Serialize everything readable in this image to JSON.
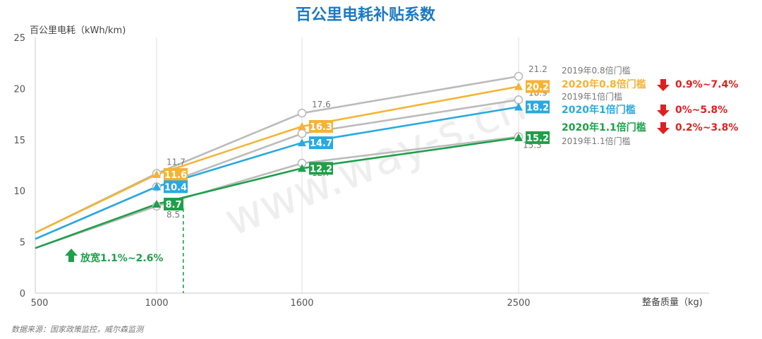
{
  "colors": {
    "gray": "#bbbbbb",
    "orange": "#f5b335",
    "blue": "#2aa9df",
    "green": "#1ea04a",
    "red": "#e02020",
    "title": "#1d79c1",
    "axis_text": "#555555",
    "grid": "#dddddd"
  },
  "watermark": "www.way-s.cn",
  "source_note": "数据来源：国家政策监控，威尔森监测",
  "relax_note": "放宽1.1%~2.6%",
  "chart_data": {
    "type": "line",
    "title": "百公里电耗补贴系数",
    "ylabel": "百公里电耗（kWh/km)",
    "xlabel": "整备质量（kg)",
    "x_ticks": [
      500,
      1000,
      1600,
      2500
    ],
    "x_tick_labels": [
      "500",
      "1000",
      "1600",
      "2500"
    ],
    "y_ticks": [
      0,
      5,
      10,
      15,
      20,
      25
    ],
    "y_tick_labels": [
      "0",
      "5",
      "10",
      "15",
      "20",
      "25"
    ],
    "ylim": [
      0,
      25
    ],
    "grid": "vertical",
    "dashed_marker_x": 1110,
    "series": [
      {
        "name": "2019年0.8倍门槛",
        "year": "2019",
        "color_key": "gray",
        "points": [
          [
            500,
            5.9
          ],
          [
            1000,
            11.7
          ],
          [
            1600,
            17.6
          ],
          [
            2500,
            21.2
          ]
        ],
        "labels": [
          "",
          "11.7",
          "17.6",
          "21.2"
        ]
      },
      {
        "name": "2019年1倍门槛",
        "year": "2019",
        "color_key": "gray",
        "points": [
          [
            500,
            5.3
          ],
          [
            1000,
            10.4
          ],
          [
            1600,
            15.6
          ],
          [
            2500,
            18.9
          ]
        ],
        "labels": [
          "",
          "10.4",
          "15.6",
          "18.9"
        ]
      },
      {
        "name": "2019年1.1倍门槛",
        "year": "2019",
        "color_key": "gray",
        "points": [
          [
            500,
            4.4
          ],
          [
            1000,
            8.5
          ],
          [
            1600,
            12.7
          ],
          [
            2500,
            15.3
          ]
        ],
        "labels": [
          "",
          "8.5",
          "12.7",
          "15.3"
        ]
      },
      {
        "name": "2020年0.8倍门槛",
        "year": "2020",
        "color_key": "orange",
        "change": "0.9%~7.4%",
        "points": [
          [
            500,
            5.9
          ],
          [
            1000,
            11.6
          ],
          [
            1600,
            16.3
          ],
          [
            2500,
            20.2
          ]
        ],
        "labels": [
          "",
          "11.6",
          "16.3",
          "20.2"
        ]
      },
      {
        "name": "2020年1倍门槛",
        "year": "2020",
        "color_key": "blue",
        "change": "0%~5.8%",
        "points": [
          [
            500,
            5.3
          ],
          [
            1000,
            10.4
          ],
          [
            1600,
            14.7
          ],
          [
            2500,
            18.2
          ]
        ],
        "labels": [
          "",
          "10.4",
          "14.7",
          "18.2"
        ]
      },
      {
        "name": "2020年1.1倍门槛",
        "year": "2020",
        "color_key": "green",
        "change": "0.2%~3.8%",
        "points": [
          [
            500,
            4.4
          ],
          [
            1000,
            8.7
          ],
          [
            1600,
            12.2
          ],
          [
            2500,
            15.2
          ]
        ],
        "labels": [
          "",
          "8.7",
          "12.2",
          "15.2"
        ]
      }
    ]
  }
}
